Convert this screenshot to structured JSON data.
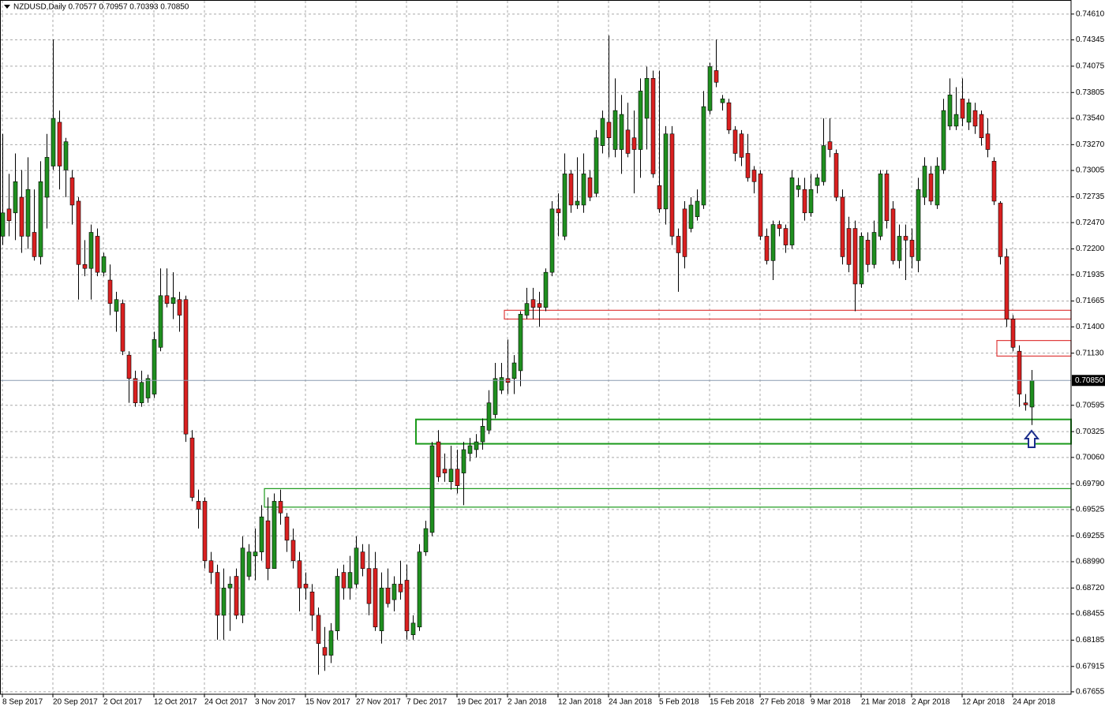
{
  "chart_data": {
    "type": "candlestick",
    "title": "NZDUSD,Daily  0.70577 0.70957 0.70393 0.70850",
    "categories": [
      "8 Sep 2017",
      null,
      null,
      null,
      null,
      null,
      null,
      null,
      "20 Sep 2017",
      null,
      null,
      null,
      null,
      null,
      null,
      null,
      "2 Oct 2017",
      null,
      null,
      null,
      null,
      null,
      null,
      null,
      "12 Oct 2017",
      null,
      null,
      null,
      null,
      null,
      null,
      null,
      "24 Oct 2017",
      null,
      null,
      null,
      null,
      null,
      null,
      null,
      "3 Nov 2017",
      null,
      null,
      null,
      null,
      null,
      null,
      null,
      "15 Nov 2017",
      null,
      null,
      null,
      null,
      null,
      null,
      null,
      "27 Nov 2017",
      null,
      null,
      null,
      null,
      null,
      null,
      null,
      "7 Dec 2017",
      null,
      null,
      null,
      null,
      null,
      null,
      null,
      "19 Dec 2017",
      null,
      null,
      null,
      null,
      null,
      null,
      null,
      "2 Jan 2018",
      null,
      null,
      null,
      null,
      null,
      null,
      null,
      "12 Jan 2018",
      null,
      null,
      null,
      null,
      null,
      null,
      null,
      "24 Jan 2018",
      null,
      null,
      null,
      null,
      null,
      null,
      null,
      "5 Feb 2018",
      null,
      null,
      null,
      null,
      null,
      null,
      null,
      "15 Feb 2018",
      null,
      null,
      null,
      null,
      null,
      null,
      null,
      "27 Feb 2018",
      null,
      null,
      null,
      null,
      null,
      null,
      null,
      "9 Mar 2018",
      null,
      null,
      null,
      null,
      null,
      null,
      null,
      "21 Mar 2018",
      null,
      null,
      null,
      null,
      null,
      null,
      null,
      "2 Apr 2018",
      null,
      null,
      null,
      null,
      null,
      null,
      null,
      "12 Apr 2018",
      null,
      null,
      null,
      null,
      null,
      null,
      null,
      "24 Apr 2018",
      null,
      null,
      null
    ],
    "open": [
      0.7233,
      0.7261,
      0.7257,
      0.7273,
      0.7233,
      0.7237,
      0.7212,
      0.7273,
      0.7305,
      0.735,
      0.7301,
      0.7293,
      0.7269,
      0.7204,
      0.72,
      0.7233,
      0.7196,
      0.7188,
      0.7156,
      0.7164,
      0.7111,
      0.7087,
      0.7062,
      0.7067,
      0.7071,
      0.7119,
      0.7172,
      0.7164,
      0.7168,
      0.7168,
      0.7026,
      0.6961,
      0.6961,
      0.69,
      0.6888,
      0.6844,
      0.6872,
      0.6884,
      0.6844,
      0.6884,
      0.6905,
      0.6909,
      0.6941,
      0.6892,
      0.6961,
      0.6945,
      0.6921,
      0.69,
      0.6876,
      0.6868,
      0.6844,
      0.6811,
      0.6803,
      0.6828,
      0.6888,
      0.6872,
      0.6876,
      0.6909,
      0.6892,
      0.6892,
      0.6828,
      0.6872,
      0.686,
      0.6876,
      0.688,
      0.6824,
      0.6832,
      0.6909,
      0.6929,
      0.7022,
      0.6994,
      0.6981,
      0.6994,
      0.699,
      0.701,
      0.7014,
      0.7022,
      0.7034,
      0.705,
      0.7075,
      0.7087,
      0.7087,
      0.7095,
      0.7152,
      0.7168,
      0.7164,
      0.716,
      0.7196,
      0.7261,
      0.7233,
      0.7297,
      0.7265,
      0.7265,
      0.7293,
      0.7277,
      0.7326,
      0.735,
      0.7322,
      0.7322,
      0.7342,
      0.7334,
      0.7322,
      0.7354,
      0.7395,
      0.7285,
      0.7261,
      0.7338,
      0.7233,
      0.7261,
      0.7241,
      0.7253,
      0.7265,
      0.7362,
      0.7403,
      0.737,
      0.737,
      0.7342,
      0.7338,
      0.7318,
      0.7301,
      0.7297,
      0.7233,
      0.7208,
      0.7245,
      0.7241,
      0.7224,
      0.7281,
      0.7281,
      0.7257,
      0.7285,
      0.7289,
      0.733,
      0.7318,
      0.7273,
      0.7241,
      0.7241,
      0.7184,
      0.7229,
      0.7204,
      0.7233,
      0.7297,
      0.7261,
      0.7208,
      0.7233,
      0.7229,
      0.7208,
      0.7273,
      0.7297,
      0.7265,
      0.7301,
      0.7346,
      0.7346,
      0.7374,
      0.735,
      0.7362,
      0.7358,
      0.7338,
      0.731,
      0.7267,
      0.7212,
      0.7148,
      0.7115,
      0.7062,
      0.70577
    ],
    "high": [
      0.7338,
      0.7297,
      0.7318,
      0.7301,
      0.7314,
      0.7281,
      0.731,
      0.7338,
      0.7435,
      0.7362,
      0.7334,
      0.7301,
      0.7273,
      0.7229,
      0.7245,
      0.7241,
      0.7216,
      0.7204,
      0.7176,
      0.7168,
      0.7115,
      0.7095,
      0.7095,
      0.7091,
      0.7135,
      0.72,
      0.72,
      0.7196,
      0.7176,
      0.7172,
      0.7034,
      0.6973,
      0.6965,
      0.6909,
      0.6896,
      0.6892,
      0.6884,
      0.6892,
      0.6925,
      0.6917,
      0.6933,
      0.6957,
      0.6965,
      0.6969,
      0.6973,
      0.6949,
      0.6933,
      0.6909,
      0.6888,
      0.6876,
      0.6852,
      0.6832,
      0.6836,
      0.6892,
      0.6896,
      0.6905,
      0.6925,
      0.6917,
      0.6917,
      0.6909,
      0.6888,
      0.6892,
      0.6884,
      0.69,
      0.6896,
      0.6844,
      0.6917,
      0.6941,
      0.7022,
      0.7034,
      0.701,
      0.7018,
      0.7014,
      0.7022,
      0.7026,
      0.703,
      0.7046,
      0.7075,
      0.7103,
      0.7103,
      0.7127,
      0.7111,
      0.7156,
      0.718,
      0.718,
      0.7176,
      0.72,
      0.7269,
      0.7277,
      0.7318,
      0.7301,
      0.7314,
      0.7318,
      0.7301,
      0.7342,
      0.7362,
      0.7439,
      0.7395,
      0.7378,
      0.737,
      0.7362,
      0.7395,
      0.7407,
      0.7403,
      0.7403,
      0.7346,
      0.7346,
      0.7241,
      0.7269,
      0.7273,
      0.7281,
      0.7382,
      0.7411,
      0.7435,
      0.7378,
      0.7374,
      0.7346,
      0.7342,
      0.7338,
      0.7305,
      0.7301,
      0.7241,
      0.7249,
      0.7249,
      0.7245,
      0.7301,
      0.7293,
      0.7293,
      0.7297,
      0.7297,
      0.7354,
      0.7354,
      0.7322,
      0.7281,
      0.7253,
      0.7249,
      0.7237,
      0.7237,
      0.7249,
      0.7301,
      0.7301,
      0.7269,
      0.7245,
      0.7245,
      0.7241,
      0.7293,
      0.7314,
      0.7305,
      0.7314,
      0.7374,
      0.7395,
      0.7386,
      0.7395,
      0.7374,
      0.737,
      0.7362,
      0.7354,
      0.7314,
      0.7269,
      0.722,
      0.7152,
      0.7121,
      0.7071,
      0.70957
    ],
    "low": [
      0.7224,
      0.7233,
      0.7229,
      0.7216,
      0.722,
      0.7208,
      0.7204,
      0.7241,
      0.7301,
      0.7281,
      0.7273,
      0.7245,
      0.7168,
      0.7192,
      0.7168,
      0.7192,
      0.7192,
      0.7152,
      0.7135,
      0.7111,
      0.7062,
      0.7058,
      0.7058,
      0.7062,
      0.7067,
      0.7115,
      0.716,
      0.7148,
      0.7135,
      0.7022,
      0.6961,
      0.6933,
      0.6892,
      0.6876,
      0.6819,
      0.6819,
      0.6828,
      0.684,
      0.6836,
      0.688,
      0.688,
      0.69,
      0.688,
      0.6892,
      0.6937,
      0.6909,
      0.6892,
      0.6848,
      0.686,
      0.6828,
      0.6783,
      0.6787,
      0.6795,
      0.6819,
      0.686,
      0.686,
      0.6872,
      0.6884,
      0.6844,
      0.6828,
      0.6815,
      0.6852,
      0.6848,
      0.686,
      0.6819,
      0.6819,
      0.6828,
      0.6905,
      0.6925,
      0.6981,
      0.6981,
      0.6973,
      0.6969,
      0.6957,
      0.7002,
      0.7006,
      0.7014,
      0.703,
      0.7046,
      0.7071,
      0.7071,
      0.7071,
      0.7079,
      0.7148,
      0.7148,
      0.714,
      0.7156,
      0.7192,
      0.7233,
      0.7229,
      0.7257,
      0.7261,
      0.7257,
      0.7269,
      0.7273,
      0.7318,
      0.7314,
      0.7314,
      0.7297,
      0.7314,
      0.7277,
      0.7293,
      0.7322,
      0.7293,
      0.7257,
      0.7245,
      0.7224,
      0.7176,
      0.72,
      0.7237,
      0.7249,
      0.7261,
      0.7358,
      0.7386,
      0.7362,
      0.7338,
      0.731,
      0.7305,
      0.7289,
      0.7277,
      0.7229,
      0.7204,
      0.7188,
      0.7233,
      0.7216,
      0.722,
      0.7273,
      0.7249,
      0.7253,
      0.7277,
      0.7285,
      0.7314,
      0.7269,
      0.7204,
      0.7196,
      0.7156,
      0.718,
      0.7196,
      0.72,
      0.7229,
      0.7241,
      0.7204,
      0.72,
      0.7188,
      0.72,
      0.7196,
      0.7265,
      0.7265,
      0.7261,
      0.7297,
      0.7342,
      0.7342,
      0.7346,
      0.7342,
      0.7338,
      0.7326,
      0.7314,
      0.7265,
      0.7204,
      0.714,
      0.7115,
      0.7058,
      0.7054,
      0.70393
    ],
    "close": [
      0.7257,
      0.7249,
      0.7289,
      0.7233,
      0.7281,
      0.7212,
      0.7289,
      0.7314,
      0.7354,
      0.7305,
      0.733,
      0.7265,
      0.7204,
      0.72,
      0.7237,
      0.7196,
      0.7212,
      0.7164,
      0.7168,
      0.7115,
      0.7087,
      0.7062,
      0.7083,
      0.7087,
      0.7127,
      0.7172,
      0.7164,
      0.717,
      0.7152,
      0.703,
      0.6965,
      0.6953,
      0.69,
      0.6888,
      0.6844,
      0.6872,
      0.6876,
      0.6844,
      0.6913,
      0.6909,
      0.6909,
      0.6945,
      0.6892,
      0.6961,
      0.6949,
      0.6921,
      0.69,
      0.6872,
      0.6872,
      0.6844,
      0.6815,
      0.6803,
      0.6828,
      0.6884,
      0.6872,
      0.6888,
      0.6913,
      0.6892,
      0.6856,
      0.6832,
      0.6872,
      0.6856,
      0.6876,
      0.6868,
      0.6828,
      0.6836,
      0.6909,
      0.6933,
      0.7018,
      0.6986,
      0.699,
      0.6994,
      0.6977,
      0.7014,
      0.7018,
      0.7022,
      0.7038,
      0.7062,
      0.7087,
      0.7088,
      0.7083,
      0.7103,
      0.7153,
      0.7164,
      0.716,
      0.716,
      0.7196,
      0.7261,
      0.7257,
      0.7297,
      0.7265,
      0.7269,
      0.7297,
      0.7273,
      0.7334,
      0.7354,
      0.7334,
      0.7362,
      0.7358,
      0.7318,
      0.7322,
      0.7382,
      0.7395,
      0.7297,
      0.7261,
      0.7338,
      0.7233,
      0.7216,
      0.7212,
      0.7265,
      0.7269,
      0.7366,
      0.7407,
      0.7391,
      0.7374,
      0.7342,
      0.7318,
      0.7314,
      0.7293,
      0.7289,
      0.7233,
      0.7208,
      0.7245,
      0.7241,
      0.7224,
      0.7293,
      0.7285,
      0.7257,
      0.7281,
      0.7293,
      0.7326,
      0.7322,
      0.7273,
      0.7212,
      0.7204,
      0.7184,
      0.7233,
      0.7204,
      0.7237,
      0.7297,
      0.7249,
      0.7208,
      0.7233,
      0.7229,
      0.7212,
      0.7281,
      0.7305,
      0.7269,
      0.7305,
      0.7362,
      0.7378,
      0.7358,
      0.7354,
      0.737,
      0.7346,
      0.7334,
      0.7322,
      0.7269,
      0.7212,
      0.7148,
      0.7119,
      0.7071,
      0.706,
      0.7085
    ],
    "up_color": "#1f8f1f",
    "down_color": "#d92020",
    "ylim": [
      0.6763,
      0.7473
    ],
    "yticks": [
      {
        "value": 0.7461,
        "label": "0.74610"
      },
      {
        "value": 0.74345,
        "label": "0.74345"
      },
      {
        "value": 0.74075,
        "label": "0.74075"
      },
      {
        "value": 0.73805,
        "label": "0.73805"
      },
      {
        "value": 0.7354,
        "label": "0.73540"
      },
      {
        "value": 0.7327,
        "label": "0.73270"
      },
      {
        "value": 0.73005,
        "label": "0.73005"
      },
      {
        "value": 0.72735,
        "label": "0.72735"
      },
      {
        "value": 0.7247,
        "label": "0.72470"
      },
      {
        "value": 0.722,
        "label": "0.72200"
      },
      {
        "value": 0.71935,
        "label": "0.71935"
      },
      {
        "value": 0.71665,
        "label": "0.71665"
      },
      {
        "value": 0.714,
        "label": "0.71400"
      },
      {
        "value": 0.7113,
        "label": "0.71130"
      },
      {
        "value": 0.70595,
        "label": "0.70595"
      },
      {
        "value": 0.70325,
        "label": "0.70325"
      },
      {
        "value": 0.7006,
        "label": "0.70060"
      },
      {
        "value": 0.6979,
        "label": "0.69790"
      },
      {
        "value": 0.69525,
        "label": "0.69525"
      },
      {
        "value": 0.69255,
        "label": "0.69255"
      },
      {
        "value": 0.6899,
        "label": "0.68990"
      },
      {
        "value": 0.6872,
        "label": "0.68720"
      },
      {
        "value": 0.68455,
        "label": "0.68455"
      },
      {
        "value": 0.68185,
        "label": "0.68185"
      },
      {
        "value": 0.67915,
        "label": "0.67915"
      },
      {
        "value": 0.67655,
        "label": "0.67655"
      }
    ],
    "grid": true,
    "last_price": {
      "value": 0.7085,
      "label": "0.70850"
    },
    "zones": [
      {
        "color": "#e03c3c",
        "top": 0.7157,
        "bottom": 0.7148
      },
      {
        "color": "#e03c3c",
        "top": 0.7126,
        "bottom": 0.711
      },
      {
        "color": "#1a9a1a",
        "top": 0.7045,
        "bottom": 0.702
      },
      {
        "color": "#1a9a1a",
        "top": 0.6974,
        "bottom": 0.6955
      }
    ]
  }
}
